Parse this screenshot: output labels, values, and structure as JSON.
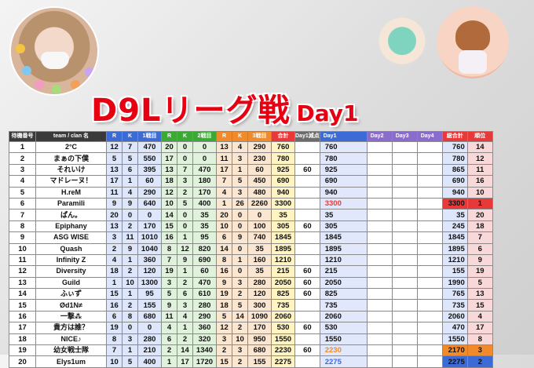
{
  "title": {
    "main": "D9Lリーグ戦",
    "sub": "Day1"
  },
  "colors": {
    "title": "#e60012",
    "header_dark": "#3a3a3a",
    "header_blue": "#3d6bd6",
    "header_green": "#3aaa35",
    "header_orange": "#f08a2b",
    "header_red": "#e8393a",
    "header_purple": "#8a6ccc",
    "header_gray": "#6b6b6b",
    "first_round_bg": "#dde6fa",
    "second_round_bg": "#e0f1dc",
    "third_round_bg": "#fbe6d1",
    "final_bg": "#fff4c2",
    "day1_bg": "#e2e8fb",
    "total_bg": "#dde6fa",
    "rank_bg": "#f8d8d8"
  },
  "table": {
    "headers": [
      "待機番号",
      "team / clan 名",
      "R",
      "K",
      "1戦目",
      "R",
      "K",
      "2戦目",
      "R",
      "K",
      "3戦目",
      "合計",
      "Day1減点",
      "Day1",
      "Day2",
      "Day3",
      "Day4",
      "総合計",
      "順位"
    ],
    "rows": [
      [
        "1",
        "2°C",
        "12",
        "7",
        "470",
        "20",
        "0",
        "0",
        "13",
        "4",
        "290",
        "760",
        "",
        "760",
        "",
        "",
        "",
        "760",
        "14"
      ],
      [
        "2",
        "まぁの下僕",
        "5",
        "5",
        "550",
        "17",
        "0",
        "0",
        "11",
        "3",
        "230",
        "780",
        "",
        "780",
        "",
        "",
        "",
        "780",
        "12"
      ],
      [
        "3",
        "それいけ",
        "13",
        "6",
        "395",
        "13",
        "7",
        "470",
        "17",
        "1",
        "60",
        "925",
        "60",
        "925",
        "",
        "",
        "",
        "865",
        "11"
      ],
      [
        "4",
        "マドレーヌ！",
        "17",
        "1",
        "60",
        "18",
        "3",
        "180",
        "7",
        "5",
        "450",
        "690",
        "",
        "690",
        "",
        "",
        "",
        "690",
        "16"
      ],
      [
        "5",
        "H.reM",
        "11",
        "4",
        "290",
        "12",
        "2",
        "170",
        "4",
        "3",
        "480",
        "940",
        "",
        "940",
        "",
        "",
        "",
        "940",
        "10"
      ],
      [
        "6",
        "Paramili",
        "9",
        "9",
        "640",
        "10",
        "5",
        "400",
        "1",
        "26",
        "2260",
        "3300",
        "",
        "3300",
        "",
        "",
        "",
        "3300",
        "1"
      ],
      [
        "7",
        "ぱん。",
        "20",
        "0",
        "0",
        "14",
        "0",
        "35",
        "20",
        "0",
        "0",
        "35",
        "",
        "35",
        "",
        "",
        "",
        "35",
        "20"
      ],
      [
        "8",
        "Epiphany",
        "13",
        "2",
        "170",
        "15",
        "0",
        "35",
        "10",
        "0",
        "100",
        "305",
        "60",
        "305",
        "",
        "",
        "",
        "245",
        "18"
      ],
      [
        "9",
        "ASG WISE",
        "3",
        "11",
        "1010",
        "16",
        "1",
        "95",
        "6",
        "9",
        "740",
        "1845",
        "",
        "1845",
        "",
        "",
        "",
        "1845",
        "7"
      ],
      [
        "10",
        "Quash",
        "2",
        "9",
        "1040",
        "8",
        "12",
        "820",
        "14",
        "0",
        "35",
        "1895",
        "",
        "1895",
        "",
        "",
        "",
        "1895",
        "6"
      ],
      [
        "11",
        "Infinity Z",
        "4",
        "1",
        "360",
        "7",
        "9",
        "690",
        "8",
        "1",
        "160",
        "1210",
        "",
        "1210",
        "",
        "",
        "",
        "1210",
        "9"
      ],
      [
        "12",
        "Diversity",
        "18",
        "2",
        "120",
        "19",
        "1",
        "60",
        "16",
        "0",
        "35",
        "215",
        "60",
        "215",
        "",
        "",
        "",
        "155",
        "19"
      ],
      [
        "13",
        "Guild",
        "1",
        "10",
        "1300",
        "3",
        "2",
        "470",
        "9",
        "3",
        "280",
        "2050",
        "60",
        "2050",
        "",
        "",
        "",
        "1990",
        "5"
      ],
      [
        "14",
        "ふぃず",
        "15",
        "1",
        "95",
        "5",
        "6",
        "610",
        "19",
        "2",
        "120",
        "825",
        "60",
        "825",
        "",
        "",
        "",
        "765",
        "13"
      ],
      [
        "15",
        "Ød1N≠",
        "16",
        "2",
        "155",
        "9",
        "3",
        "280",
        "18",
        "5",
        "300",
        "735",
        "",
        "735",
        "",
        "",
        "",
        "735",
        "15"
      ],
      [
        "16",
        "一撃⁂",
        "6",
        "8",
        "680",
        "11",
        "4",
        "290",
        "5",
        "14",
        "1090",
        "2060",
        "",
        "2060",
        "",
        "",
        "",
        "2060",
        "4"
      ],
      [
        "17",
        "貴方は誰？",
        "19",
        "0",
        "0",
        "4",
        "1",
        "360",
        "12",
        "2",
        "170",
        "530",
        "60",
        "530",
        "",
        "",
        "",
        "470",
        "17"
      ],
      [
        "18",
        "NICE♪",
        "8",
        "3",
        "280",
        "6",
        "2",
        "320",
        "3",
        "10",
        "950",
        "1550",
        "",
        "1550",
        "",
        "",
        "",
        "1550",
        "8"
      ],
      [
        "19",
        "幼女戦士隊",
        "7",
        "1",
        "210",
        "2",
        "14",
        "1340",
        "2",
        "3",
        "680",
        "2230",
        "60",
        "2230",
        "",
        "",
        "",
        "2170",
        "3"
      ],
      [
        "20",
        "Elys1um",
        "10",
        "5",
        "400",
        "1",
        "17",
        "1720",
        "15",
        "2",
        "155",
        "2275",
        "",
        "2275",
        "",
        "",
        "",
        "2275",
        "2"
      ]
    ]
  },
  "highlights": {
    "day1_red_row": 6,
    "day1_orange_row": 19,
    "day1_blue_row": 20,
    "rank_colors": {
      "1": "#e8393a",
      "2": "#3d6bd6",
      "3": "#f08a2b"
    },
    "total_colors": {
      "1": "#e8393a",
      "2": "#3d6bd6",
      "3": "#f08a2b"
    }
  }
}
